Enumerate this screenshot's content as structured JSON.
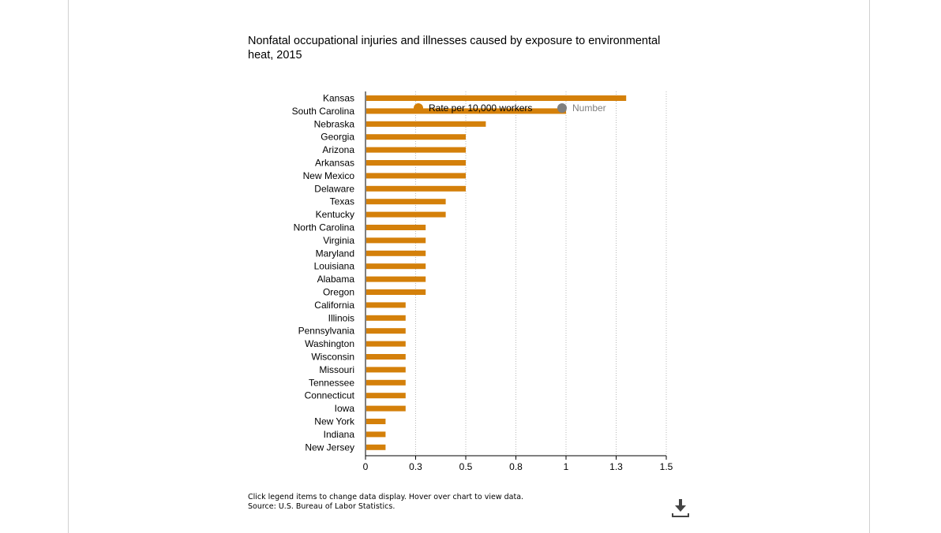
{
  "title": "Nonfatal occupational injuries and illnesses caused by exposure to environmental heat, 2015",
  "legend": {
    "items": [
      {
        "label": "Rate per 10,000 workers",
        "color": "#d4800a",
        "active": true
      },
      {
        "label": "Number",
        "color": "#7f7f7f",
        "active": false
      }
    ]
  },
  "footer": {
    "note": "Click legend items to change data display. Hover over chart to view data.",
    "source": "Source: U.S. Bureau of Labor Statistics."
  },
  "icons": {
    "download": "download-icon"
  },
  "chart_data": {
    "type": "bar",
    "orientation": "horizontal",
    "categories": [
      "Kansas",
      "South Carolina",
      "Nebraska",
      "Georgia",
      "Arizona",
      "Arkansas",
      "New Mexico",
      "Delaware",
      "Texas",
      "Kentucky",
      "North Carolina",
      "Virginia",
      "Maryland",
      "Louisiana",
      "Alabama",
      "Oregon",
      "California",
      "Illinois",
      "Pennsylvania",
      "Washington",
      "Wisconsin",
      "Missouri",
      "Tennessee",
      "Connecticut",
      "Iowa",
      "New York",
      "Indiana",
      "New Jersey"
    ],
    "series": [
      {
        "name": "Rate per 10,000 workers",
        "color": "#d4800a",
        "values": [
          1.3,
          1.0,
          0.6,
          0.5,
          0.5,
          0.5,
          0.5,
          0.5,
          0.4,
          0.4,
          0.3,
          0.3,
          0.3,
          0.3,
          0.3,
          0.3,
          0.2,
          0.2,
          0.2,
          0.2,
          0.2,
          0.2,
          0.2,
          0.2,
          0.2,
          0.1,
          0.1,
          0.1
        ]
      }
    ],
    "xticks": [
      "0",
      "0.3",
      "0.5",
      "0.8",
      "1",
      "1.3",
      "1.5"
    ],
    "xlim": [
      0,
      1.5
    ],
    "grid": true,
    "legend_position": "top-inside"
  }
}
